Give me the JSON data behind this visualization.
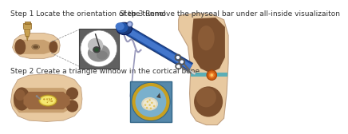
{
  "background_color": "#ffffff",
  "step1_text": "Step 1 Locate the orientation of the tunnel",
  "step2_text": "Step 2 Create a triangle window in the cortical bone",
  "step3_text": "Step 3 Remove the physeal bar under all-inside visualizaiton",
  "skin_color": "#e8c9a0",
  "bone_dark": "#7a4e2d",
  "bone_mid": "#9a6840",
  "bone_light": "#c8a070",
  "xray_bg": "#b0b0b0",
  "xray_dark": "#606060",
  "xray_light": "#d0d0d0",
  "blue_dark": "#1a3a7a",
  "blue_mid": "#2255aa",
  "blue_light": "#4477cc",
  "lesion_yellow": "#e8d050",
  "lesion_light": "#f5e870",
  "teal_color": "#44aabb",
  "gray_tool": "#aaaaaa",
  "text_color": "#333333",
  "step_fontsize": 6.5,
  "fig_width": 4.0,
  "fig_height": 2.14
}
